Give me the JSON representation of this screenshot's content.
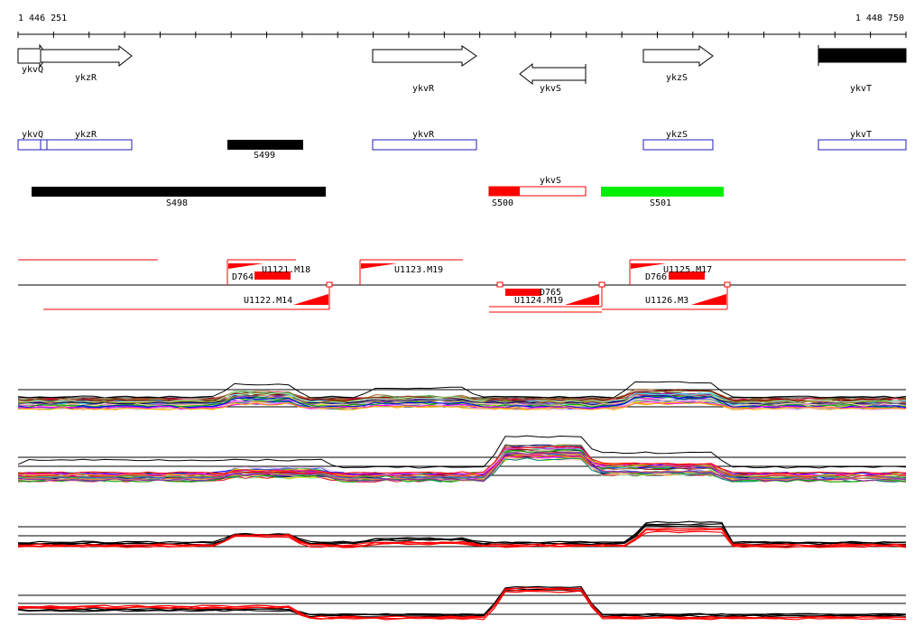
{
  "ruler": {
    "start_label": "1 446 251",
    "end_label": "1 448 750"
  },
  "genes": [
    {
      "label": "ykvQ"
    },
    {
      "label": "ykzR"
    },
    {
      "label": "ykvR"
    },
    {
      "label": "ykvS"
    },
    {
      "label": "ykzS"
    },
    {
      "label": "ykvT"
    }
  ],
  "annotated_genes": [
    {
      "label": "ykvQ"
    },
    {
      "label": "ykzR"
    },
    {
      "label": "ykvR"
    },
    {
      "label": "ykzS"
    },
    {
      "label": "ykvT"
    },
    {
      "label": "ykvS"
    }
  ],
  "segments": [
    {
      "label": "S499"
    },
    {
      "label": "S498"
    },
    {
      "label": "S500"
    },
    {
      "label": "S501"
    }
  ],
  "transcripts": [
    {
      "label": "U1121.M18"
    },
    {
      "label": "D764"
    },
    {
      "label": "U1122.M14"
    },
    {
      "label": "U1123.M19"
    },
    {
      "label": "D765"
    },
    {
      "label": "U1124.M19"
    },
    {
      "label": "U1125.M17"
    },
    {
      "label": "D766"
    },
    {
      "label": "U1126.M3"
    }
  ],
  "colors": {
    "gene_outline": "#000000",
    "annotated_gene": "#1f1fbf",
    "segment_black": "#000000",
    "segment_red": "#ff0000",
    "segment_green": "#00ee00",
    "transcript": "#ff0000",
    "profile_black": "#000000",
    "profile_red": "#ff0000"
  }
}
